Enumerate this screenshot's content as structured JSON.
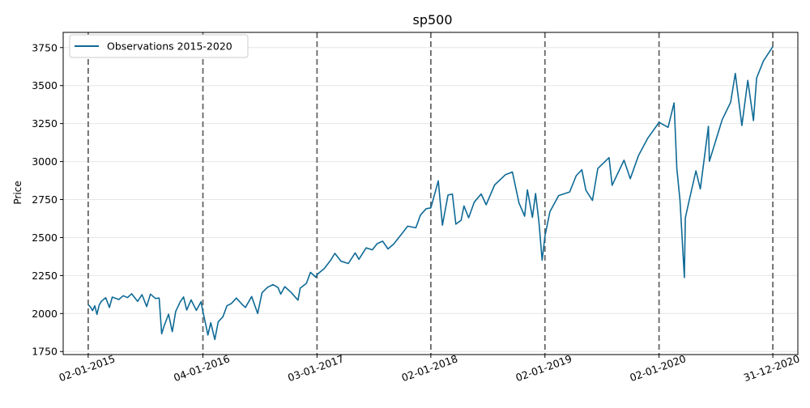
{
  "chart_data": {
    "type": "line",
    "title": "sp500",
    "xlabel": "",
    "ylabel": "Price",
    "ylim": [
      1730,
      3850
    ],
    "y_ticks": [
      1750,
      2000,
      2250,
      2500,
      2750,
      3000,
      3250,
      3500,
      3750
    ],
    "y_grid": true,
    "legend_position": "top-left",
    "line_color": "#0e6a96",
    "vline_color": "#666666",
    "x_axis_type": "date",
    "xlim": [
      "2014-10-14",
      "2021-03-21"
    ],
    "x_ticks": [
      {
        "date": "2015-01-02",
        "label": "02-01-2015"
      },
      {
        "date": "2016-01-04",
        "label": "04-01-2016"
      },
      {
        "date": "2017-01-03",
        "label": "03-01-2017"
      },
      {
        "date": "2018-01-02",
        "label": "02-01-2018"
      },
      {
        "date": "2019-01-02",
        "label": "02-01-2019"
      },
      {
        "date": "2020-01-02",
        "label": "02-01-2020"
      },
      {
        "date": "2020-12-31",
        "label": "31-12-2020"
      }
    ],
    "vlines": [
      "2015-01-02",
      "2016-01-04",
      "2017-01-03",
      "2018-01-02",
      "2019-01-02",
      "2020-01-02",
      "2020-12-31"
    ],
    "series": [
      {
        "name": "Observations 2015-2020",
        "points": [
          [
            "2015-01-02",
            2058
          ],
          [
            "2015-01-09",
            2044
          ],
          [
            "2015-01-16",
            2019
          ],
          [
            "2015-01-23",
            2051
          ],
          [
            "2015-01-30",
            1995
          ],
          [
            "2015-02-06",
            2055
          ],
          [
            "2015-02-13",
            2080
          ],
          [
            "2015-02-27",
            2104
          ],
          [
            "2015-03-11",
            2040
          ],
          [
            "2015-03-20",
            2108
          ],
          [
            "2015-04-10",
            2092
          ],
          [
            "2015-04-24",
            2117
          ],
          [
            "2015-05-08",
            2105
          ],
          [
            "2015-05-21",
            2130
          ],
          [
            "2015-06-09",
            2080
          ],
          [
            "2015-06-23",
            2124
          ],
          [
            "2015-07-08",
            2046
          ],
          [
            "2015-07-20",
            2128
          ],
          [
            "2015-08-05",
            2099
          ],
          [
            "2015-08-17",
            2102
          ],
          [
            "2015-08-25",
            1867
          ],
          [
            "2015-09-01",
            1914
          ],
          [
            "2015-09-16",
            1996
          ],
          [
            "2015-09-28",
            1881
          ],
          [
            "2015-10-09",
            2014
          ],
          [
            "2015-10-23",
            2075
          ],
          [
            "2015-11-03",
            2109
          ],
          [
            "2015-11-13",
            2023
          ],
          [
            "2015-11-27",
            2090
          ],
          [
            "2015-12-14",
            2021
          ],
          [
            "2015-12-29",
            2078
          ],
          [
            "2016-01-04",
            2012
          ],
          [
            "2016-01-12",
            1938
          ],
          [
            "2016-01-20",
            1859
          ],
          [
            "2016-01-29",
            1940
          ],
          [
            "2016-02-11",
            1829
          ],
          [
            "2016-02-22",
            1945
          ],
          [
            "2016-03-08",
            1979
          ],
          [
            "2016-03-21",
            2051
          ],
          [
            "2016-04-04",
            2066
          ],
          [
            "2016-04-20",
            2102
          ],
          [
            "2016-05-09",
            2058
          ],
          [
            "2016-05-19",
            2040
          ],
          [
            "2016-06-08",
            2112
          ],
          [
            "2016-06-27",
            2000
          ],
          [
            "2016-07-11",
            2137
          ],
          [
            "2016-07-29",
            2173
          ],
          [
            "2016-08-15",
            2190
          ],
          [
            "2016-08-31",
            2171
          ],
          [
            "2016-09-09",
            2128
          ],
          [
            "2016-09-22",
            2177
          ],
          [
            "2016-10-12",
            2139
          ],
          [
            "2016-11-03",
            2088
          ],
          [
            "2016-11-10",
            2167
          ],
          [
            "2016-11-30",
            2199
          ],
          [
            "2016-12-13",
            2271
          ],
          [
            "2016-12-30",
            2239
          ],
          [
            "2017-01-03",
            2257
          ],
          [
            "2017-01-26",
            2296
          ],
          [
            "2017-02-15",
            2349
          ],
          [
            "2017-03-01",
            2396
          ],
          [
            "2017-03-21",
            2344
          ],
          [
            "2017-04-13",
            2329
          ],
          [
            "2017-05-05",
            2399
          ],
          [
            "2017-05-17",
            2357
          ],
          [
            "2017-06-09",
            2432
          ],
          [
            "2017-06-29",
            2419
          ],
          [
            "2017-07-14",
            2459
          ],
          [
            "2017-08-01",
            2476
          ],
          [
            "2017-08-18",
            2425
          ],
          [
            "2017-09-05",
            2457
          ],
          [
            "2017-09-29",
            2519
          ],
          [
            "2017-10-20",
            2575
          ],
          [
            "2017-11-15",
            2564
          ],
          [
            "2017-11-30",
            2648
          ],
          [
            "2017-12-18",
            2690
          ],
          [
            "2018-01-02",
            2695
          ],
          [
            "2018-01-26",
            2873
          ],
          [
            "2018-02-08",
            2581
          ],
          [
            "2018-02-26",
            2780
          ],
          [
            "2018-03-12",
            2786
          ],
          [
            "2018-03-23",
            2588
          ],
          [
            "2018-04-09",
            2614
          ],
          [
            "2018-04-18",
            2708
          ],
          [
            "2018-05-03",
            2630
          ],
          [
            "2018-05-21",
            2733
          ],
          [
            "2018-06-12",
            2787
          ],
          [
            "2018-06-28",
            2716
          ],
          [
            "2018-07-25",
            2846
          ],
          [
            "2018-08-29",
            2914
          ],
          [
            "2018-09-20",
            2931
          ],
          [
            "2018-10-11",
            2728
          ],
          [
            "2018-10-29",
            2641
          ],
          [
            "2018-11-07",
            2814
          ],
          [
            "2018-11-23",
            2633
          ],
          [
            "2018-12-03",
            2790
          ],
          [
            "2018-12-14",
            2600
          ],
          [
            "2018-12-24",
            2351
          ],
          [
            "2019-01-02",
            2510
          ],
          [
            "2019-01-18",
            2670
          ],
          [
            "2019-02-15",
            2776
          ],
          [
            "2019-03-22",
            2800
          ],
          [
            "2019-04-12",
            2907
          ],
          [
            "2019-04-30",
            2946
          ],
          [
            "2019-05-13",
            2812
          ],
          [
            "2019-06-03",
            2744
          ],
          [
            "2019-06-20",
            2954
          ],
          [
            "2019-07-26",
            3026
          ],
          [
            "2019-08-05",
            2844
          ],
          [
            "2019-09-12",
            3009
          ],
          [
            "2019-10-02",
            2887
          ],
          [
            "2019-10-28",
            3039
          ],
          [
            "2019-11-27",
            3154
          ],
          [
            "2019-12-27",
            3240
          ],
          [
            "2020-01-02",
            3258
          ],
          [
            "2020-01-31",
            3225
          ],
          [
            "2020-02-19",
            3386
          ],
          [
            "2020-02-28",
            2954
          ],
          [
            "2020-03-09",
            2746
          ],
          [
            "2020-03-23",
            2237
          ],
          [
            "2020-03-26",
            2630
          ],
          [
            "2020-04-08",
            2750
          ],
          [
            "2020-04-29",
            2939
          ],
          [
            "2020-05-13",
            2820
          ],
          [
            "2020-06-08",
            3232
          ],
          [
            "2020-06-11",
            3002
          ],
          [
            "2020-07-22",
            3276
          ],
          [
            "2020-08-18",
            3390
          ],
          [
            "2020-09-02",
            3580
          ],
          [
            "2020-09-23",
            3237
          ],
          [
            "2020-10-12",
            3534
          ],
          [
            "2020-10-30",
            3270
          ],
          [
            "2020-11-09",
            3550
          ],
          [
            "2020-12-01",
            3662
          ],
          [
            "2020-12-31",
            3756
          ]
        ]
      }
    ]
  }
}
